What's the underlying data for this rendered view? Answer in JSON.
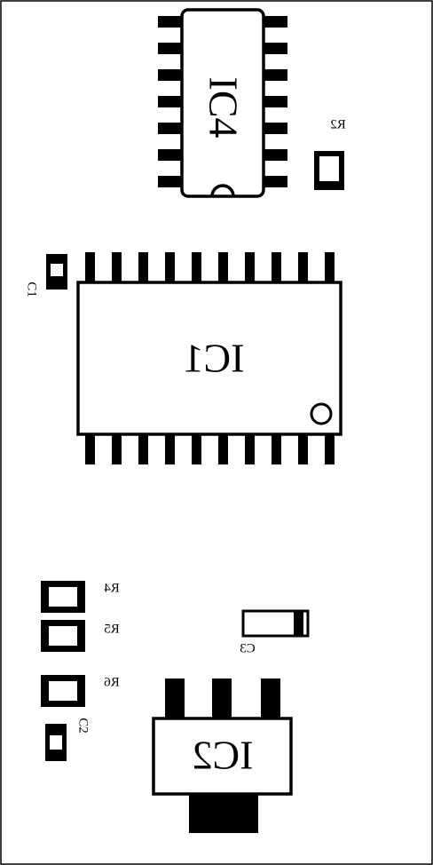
{
  "labels": {
    "ic1": "IC1",
    "ic2": "IC2",
    "ic4": "IC4",
    "c1": "C1",
    "c2": "C2",
    "c3": "C3",
    "r2": "R2",
    "r4": "R4",
    "r5": "R5",
    "r6": "R6"
  }
}
